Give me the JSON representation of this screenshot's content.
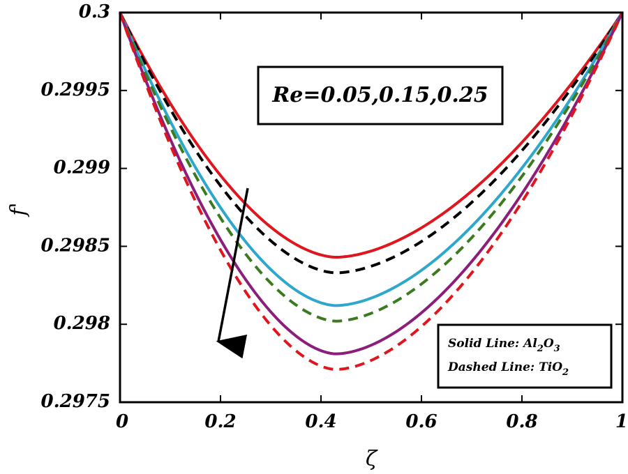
{
  "chart_data": {
    "type": "line",
    "title": "",
    "xlabel": "ζ",
    "ylabel": "f'",
    "xlim": [
      0,
      1
    ],
    "ylim": [
      0.2975,
      0.3
    ],
    "xticks": [
      0,
      0.2,
      0.4,
      0.6,
      0.8,
      1
    ],
    "xtick_labels": [
      "0",
      "0.2",
      "0.4",
      "0.6",
      "0.8",
      "1"
    ],
    "yticks": [
      0.2975,
      0.298,
      0.2985,
      0.299,
      0.2995,
      0.3
    ],
    "ytick_labels": [
      "0.2975",
      "0.298",
      "0.2985",
      "0.299",
      "0.2995",
      "0.3"
    ],
    "minimum_location": 0.43,
    "series": [
      {
        "name": "Al2O3, Re=0.05",
        "style": "solid",
        "color": "#e0161e",
        "endpoint": 0.3,
        "minimum": 0.29843
      },
      {
        "name": "TiO2, Re=0.05",
        "style": "dashed",
        "color": "#000000",
        "endpoint": 0.3,
        "minimum": 0.29833
      },
      {
        "name": "Al2O3, Re=0.15",
        "style": "solid",
        "color": "#2ea7cc",
        "endpoint": 0.3,
        "minimum": 0.29812
      },
      {
        "name": "TiO2, Re=0.15",
        "style": "dashed",
        "color": "#3b7a1f",
        "endpoint": 0.3,
        "minimum": 0.29802
      },
      {
        "name": "Al2O3, Re=0.25",
        "style": "solid",
        "color": "#8b1e7a",
        "endpoint": 0.3,
        "minimum": 0.29781
      },
      {
        "name": "TiO2, Re=0.25",
        "style": "dashed",
        "color": "#e0161e",
        "endpoint": 0.3,
        "minimum": 0.29771
      }
    ],
    "annotation": {
      "text": "Re=0.05,0.15,0.25",
      "arrow": "direction of increasing Re"
    },
    "legend": {
      "position": "bottom-right",
      "solid_prefix": "Solid Line: ",
      "solid_material": [
        "Al",
        "2",
        "O",
        "3"
      ],
      "dashed_prefix": "Dashed Line: ",
      "dashed_material": [
        "TiO",
        "2"
      ]
    }
  }
}
